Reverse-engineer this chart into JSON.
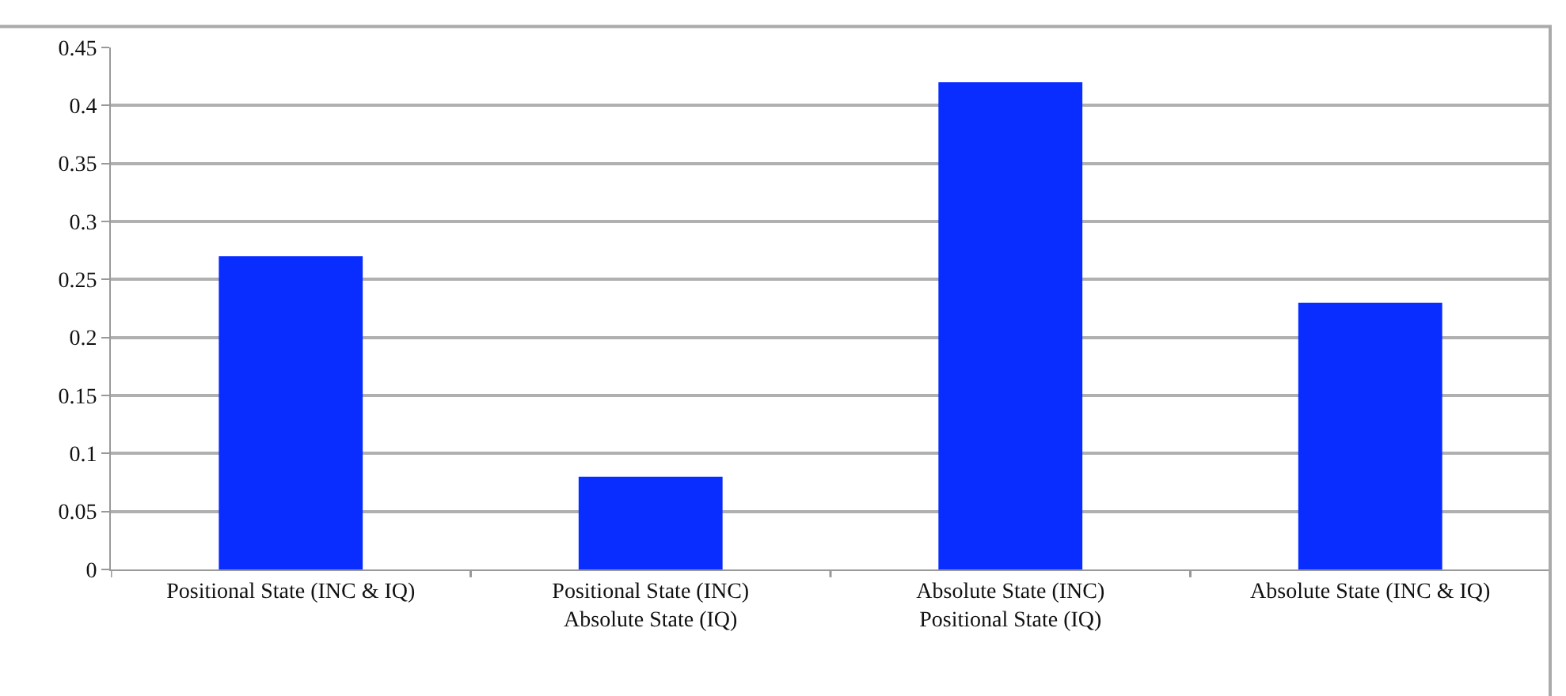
{
  "chart_data": {
    "type": "bar",
    "categories": [
      "Positional State (INC & IQ)",
      "Positional State (INC)\nAbsolute State (IQ)",
      "Absolute State (INC)\nPositional State (IQ)",
      "Absolute State (INC & IQ)"
    ],
    "values": [
      0.27,
      0.08,
      0.42,
      0.23
    ],
    "color": "#0a2dff",
    "ylim": [
      0,
      0.45
    ],
    "yticks": [
      0,
      0.05,
      0.1,
      0.15,
      0.2,
      0.25,
      0.3,
      0.35,
      0.4,
      0.45
    ],
    "grid": "y",
    "legend": false
  }
}
